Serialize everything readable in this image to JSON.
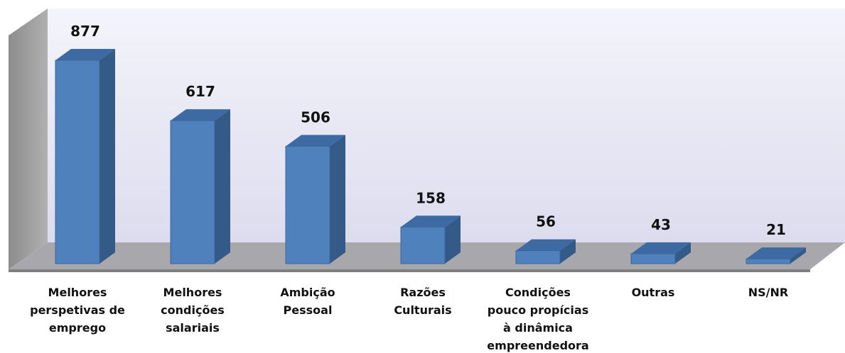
{
  "chart_data": {
    "type": "bar3d",
    "categories": [
      "Melhores perspetivas de emprego",
      "Melhores condições salariais",
      "Ambição Pessoal",
      "Razões Culturais",
      "Condições pouco propícias à dinâmica empreendedora",
      "Outras",
      "NS/NR"
    ],
    "values": [
      877,
      617,
      506,
      158,
      56,
      43,
      21
    ],
    "color": "#4f81bd"
  }
}
